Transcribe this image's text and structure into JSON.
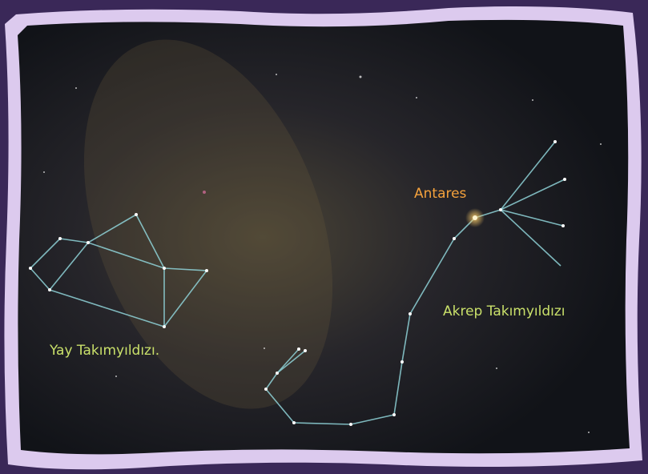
{
  "labels": {
    "star": "Antares",
    "scorpius": "Akrep Takımyıldızı",
    "sagittarius": "Yay Takımyıldızı."
  }
}
